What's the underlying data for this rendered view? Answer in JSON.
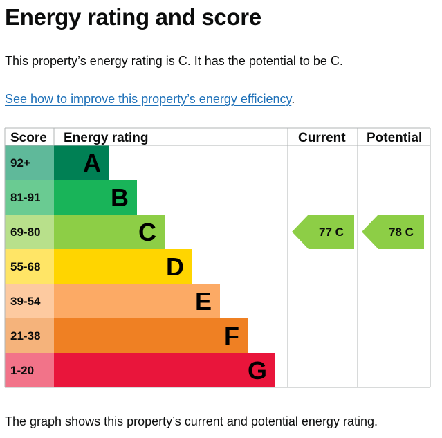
{
  "page": {
    "title": "Energy rating and score",
    "lead": "This property’s energy rating is C. It has the potential to be C.",
    "link_text": "See how to improve this property’s energy efficiency",
    "link_suffix": ".",
    "footer": "The graph shows this property’s current and potential energy rating."
  },
  "chart_data": {
    "type": "bar",
    "columns": [
      "Score",
      "Energy rating",
      "Current",
      "Potential"
    ],
    "bands": [
      {
        "score_range": "92+",
        "letter": "A",
        "color": "#008054",
        "score_color": "#5fb99a",
        "relative_length": 1
      },
      {
        "score_range": "81-91",
        "letter": "B",
        "color": "#19b459",
        "score_color": "#6acb92",
        "relative_length": 2
      },
      {
        "score_range": "69-80",
        "letter": "C",
        "color": "#8dce46",
        "score_color": "#b8e08b",
        "relative_length": 3
      },
      {
        "score_range": "55-68",
        "letter": "D",
        "color": "#ffd500",
        "score_color": "#ffe566",
        "relative_length": 4
      },
      {
        "score_range": "39-54",
        "letter": "E",
        "color": "#fcaa65",
        "score_color": "#fdcaa0",
        "relative_length": 5
      },
      {
        "score_range": "21-38",
        "letter": "F",
        "color": "#ef8023",
        "score_color": "#f5b37b",
        "relative_length": 6
      },
      {
        "score_range": "1-20",
        "letter": "G",
        "color": "#e9153b",
        "score_color": "#f27389",
        "relative_length": 7
      }
    ],
    "current": {
      "score": 77,
      "letter": "C",
      "label": "77 C",
      "color": "#8dce46"
    },
    "potential": {
      "score": 78,
      "letter": "C",
      "label": "78 C",
      "color": "#8dce46"
    }
  }
}
